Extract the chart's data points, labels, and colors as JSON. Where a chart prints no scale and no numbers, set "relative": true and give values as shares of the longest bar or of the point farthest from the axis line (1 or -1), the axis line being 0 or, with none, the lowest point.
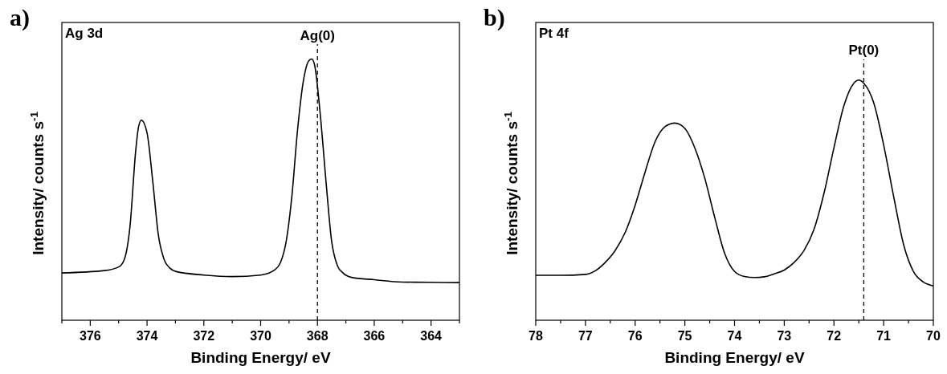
{
  "chart_data": [
    {
      "type": "line",
      "title": "a)",
      "xlabel": "Binding Energy/ eV",
      "ylabel": "Intensity/ counts s$^{-1}$",
      "annotations": [
        "Ag 3d"
      ],
      "relative": true,
      "xlim": [
        377,
        363
      ],
      "xticks": [
        {
          "value": 377,
          "label": null
        },
        376,
        {
          "value": 375,
          "label": null
        },
        374,
        {
          "value": 373,
          "label": null
        },
        372,
        {
          "value": 371,
          "label": null
        },
        370,
        {
          "value": 369,
          "label": null
        },
        368,
        {
          "value": 367,
          "label": null
        },
        366,
        {
          "value": 365,
          "label": null
        },
        364,
        {
          "value": 363,
          "label": null
        }
      ],
      "ref_lines": [
        {
          "axis": "x",
          "value": 368,
          "label": "Ag(0)",
          "line_style": "dashed",
          "color": "#000000"
        }
      ],
      "series": [
        {
          "color": "#000000",
          "x": [
            377,
            375.5,
            375,
            374.8,
            374.6,
            374.4,
            374.3,
            374.2,
            374.0,
            373.8,
            373.6,
            373.4,
            373.2,
            373,
            372,
            371,
            370,
            369.5,
            369.3,
            369.1,
            368.9,
            368.7,
            368.5,
            368.3,
            368.2,
            368.1,
            367.9,
            367.7,
            367.5,
            367.3,
            367.1,
            366.8,
            366,
            365,
            364,
            363
          ],
          "values": [
            0.181,
            0.19,
            0.204,
            0.233,
            0.36,
            0.648,
            0.74,
            0.766,
            0.717,
            0.533,
            0.325,
            0.233,
            0.2,
            0.187,
            0.173,
            0.167,
            0.173,
            0.193,
            0.221,
            0.302,
            0.475,
            0.729,
            0.913,
            0.994,
            1,
            0.977,
            0.787,
            0.533,
            0.302,
            0.21,
            0.181,
            0.164,
            0.155,
            0.146,
            0.145,
            0.144
          ]
        }
      ]
    },
    {
      "type": "line",
      "title": "b)",
      "xlabel": "Binding Energy/ eV",
      "ylabel": "Intensity/ counts s$^{-1}$",
      "annotations": [
        "Pt 4f"
      ],
      "relative": true,
      "xlim": [
        78,
        70
      ],
      "xticks": [
        78,
        {
          "value": 77.5,
          "label": null
        },
        77,
        {
          "value": 76.5,
          "label": null
        },
        76,
        {
          "value": 75.5,
          "label": null
        },
        75,
        {
          "value": 74.5,
          "label": null
        },
        74,
        {
          "value": 73.5,
          "label": null
        },
        73,
        {
          "value": 72.5,
          "label": null
        },
        72,
        {
          "value": 71.5,
          "label": null
        },
        71,
        {
          "value": 70.5,
          "label": null
        },
        70
      ],
      "ref_lines": [
        {
          "axis": "x",
          "value": 71.4,
          "label": "Pt(0)",
          "line_style": "dashed",
          "color": "#000000"
        }
      ],
      "series": [
        {
          "color": "#000000",
          "x": [
            78,
            77.5,
            77,
            76.8,
            76.6,
            76.4,
            76.2,
            76.0,
            75.8,
            75.6,
            75.4,
            75.2,
            75.0,
            74.8,
            74.6,
            74.4,
            74.2,
            74.0,
            73.8,
            73.6,
            73.4,
            73.2,
            73.0,
            72.8,
            72.6,
            72.4,
            72.2,
            72.0,
            71.8,
            71.6,
            71.5,
            71.4,
            71.2,
            71.0,
            70.8,
            70.6,
            70.4,
            70.2,
            70.0
          ],
          "values": [
            0.187,
            0.187,
            0.191,
            0.206,
            0.241,
            0.291,
            0.366,
            0.479,
            0.617,
            0.743,
            0.806,
            0.821,
            0.799,
            0.718,
            0.592,
            0.429,
            0.279,
            0.203,
            0.182,
            0.178,
            0.181,
            0.193,
            0.209,
            0.241,
            0.291,
            0.379,
            0.529,
            0.718,
            0.893,
            0.987,
            1,
            0.987,
            0.906,
            0.73,
            0.517,
            0.316,
            0.203,
            0.159,
            0.143
          ]
        }
      ]
    }
  ]
}
